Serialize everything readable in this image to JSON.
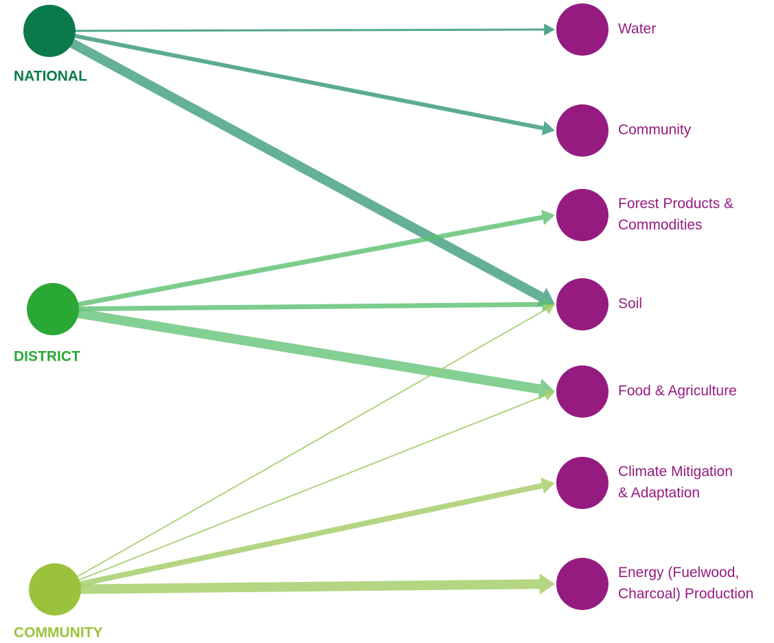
{
  "sources": [
    {
      "label": "NATIONAL"
    },
    {
      "label": "DISTRICT"
    },
    {
      "label": "COMMUNITY"
    }
  ],
  "targets": [
    {
      "label": [
        "Water"
      ]
    },
    {
      "label": [
        "Community"
      ]
    },
    {
      "label": [
        "Forest Products &",
        "Commodities"
      ]
    },
    {
      "label": [
        "Soil"
      ]
    },
    {
      "label": [
        "Food & Agriculture"
      ]
    },
    {
      "label": [
        "Climate Mitigation",
        "& Adaptation"
      ]
    },
    {
      "label": [
        "Energy (Fuelwood,",
        "Charcoal) Production"
      ]
    }
  ]
}
